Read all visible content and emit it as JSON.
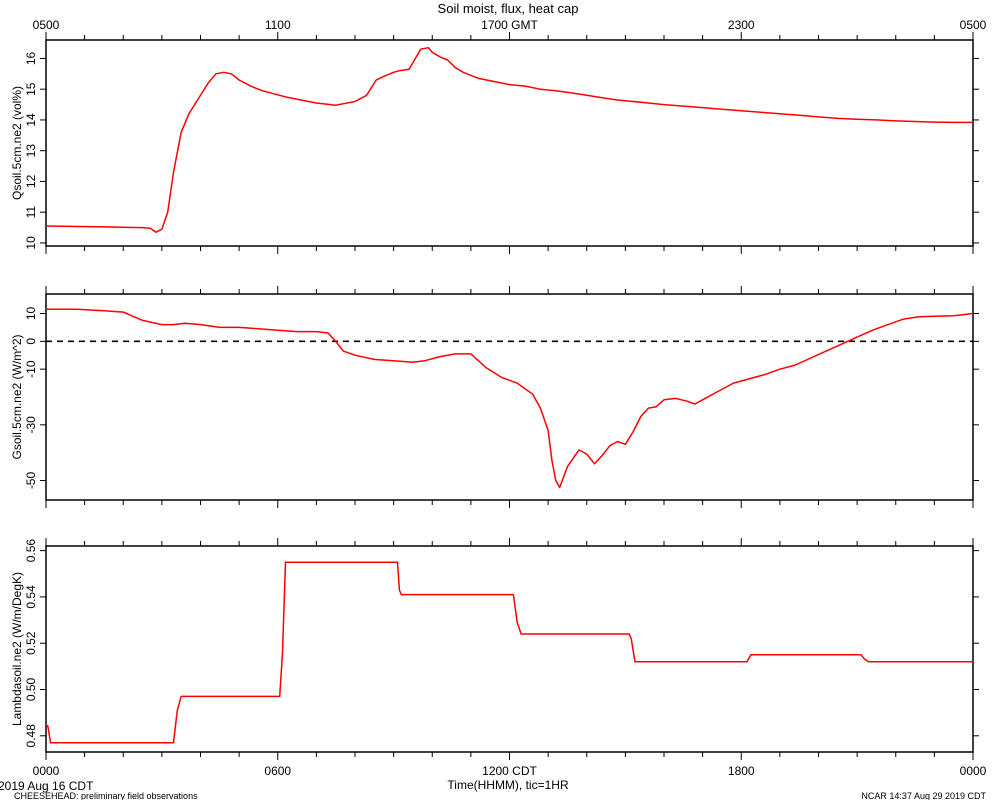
{
  "figure": {
    "title": "Soil moist, flux, heat cap",
    "top_axis_ticks": [
      "0500",
      "1100",
      "1700 GMT",
      "2300",
      "0500"
    ],
    "bottom_axis_ticks": [
      "0000",
      "0600",
      "1200 CDT",
      "1800",
      "0000"
    ],
    "xlabel": "Time(HHMM), tic=1HR",
    "date_label": "2019 Aug 16 CDT",
    "footer_left": "CHEESEHEAD: preliminary field observations",
    "footer_right": "NCAR 14:37 Aug 29 2019 CDT",
    "line_color": "#ff0000",
    "zero_line_color": "#000000"
  },
  "chart_data": [
    {
      "type": "line",
      "ylabel": "Qsoil.5cm.ne2 (vol%)",
      "x_unit": "hours since 0000 CDT",
      "xlim": [
        0,
        24
      ],
      "ylim": [
        9.9,
        16.6
      ],
      "yticks": [
        10,
        11,
        12,
        13,
        14,
        15,
        16
      ],
      "ytick_labels": [
        "10",
        "11",
        "12",
        "13",
        "14",
        "15",
        "16"
      ],
      "series": [
        {
          "x": [
            0,
            1.5,
            2.5,
            2.7,
            2.85,
            3.0,
            3.15,
            3.3,
            3.5,
            3.7,
            3.9,
            4.2,
            4.4,
            4.6,
            4.8,
            5.0,
            5.3,
            5.6,
            5.9,
            6.2,
            6.6,
            7.0,
            7.5,
            8.0,
            8.3,
            8.55,
            8.8,
            9.0,
            9.15,
            9.4,
            9.7,
            9.9,
            10.0,
            10.2,
            10.4,
            10.6,
            10.8,
            11.2,
            11.6,
            12.0,
            12.4,
            12.8,
            13.2,
            13.6,
            14.0,
            14.4,
            14.8,
            15.2,
            15.6,
            16.0,
            16.5,
            17.0,
            17.5,
            18.0,
            18.5,
            19.0,
            19.5,
            20.0,
            20.5,
            21.0,
            21.5,
            22.0,
            22.5,
            23.0,
            23.5,
            24.0
          ],
          "y": [
            10.55,
            10.52,
            10.5,
            10.48,
            10.35,
            10.45,
            11.0,
            12.3,
            13.6,
            14.2,
            14.6,
            15.2,
            15.5,
            15.55,
            15.5,
            15.3,
            15.1,
            14.95,
            14.85,
            14.75,
            14.65,
            14.55,
            14.48,
            14.6,
            14.8,
            15.3,
            15.45,
            15.55,
            15.6,
            15.65,
            16.3,
            16.35,
            16.2,
            16.05,
            15.95,
            15.7,
            15.55,
            15.35,
            15.25,
            15.15,
            15.1,
            15.0,
            14.95,
            14.88,
            14.8,
            14.72,
            14.65,
            14.6,
            14.55,
            14.5,
            14.45,
            14.4,
            14.35,
            14.3,
            14.25,
            14.2,
            14.15,
            14.1,
            14.05,
            14.02,
            14.0,
            13.97,
            13.95,
            13.93,
            13.92,
            13.92
          ]
        }
      ]
    },
    {
      "type": "line",
      "ylabel": "Gsoil.5cm.ne2 (W/m^2)",
      "x_unit": "hours since 0000 CDT",
      "xlim": [
        0,
        24
      ],
      "ylim": [
        -57,
        17
      ],
      "yticks": [
        10,
        0,
        -10,
        -30,
        -50
      ],
      "ytick_labels": [
        "10",
        "0",
        "-10",
        "-30",
        "-50"
      ],
      "zero_line": true,
      "series": [
        {
          "x": [
            0,
            0.8,
            1.5,
            2.0,
            2.5,
            3.0,
            3.3,
            3.6,
            4.0,
            4.5,
            5.0,
            5.5,
            6.0,
            6.5,
            7.0,
            7.3,
            7.5,
            7.7,
            8.0,
            8.5,
            9.0,
            9.5,
            9.8,
            10.2,
            10.6,
            11.0,
            11.4,
            11.8,
            12.2,
            12.6,
            12.8,
            13.0,
            13.1,
            13.2,
            13.3,
            13.5,
            13.8,
            14.0,
            14.2,
            14.4,
            14.6,
            14.8,
            15.0,
            15.2,
            15.4,
            15.6,
            15.8,
            16.0,
            16.3,
            16.6,
            16.8,
            17.0,
            17.4,
            17.8,
            18.2,
            18.6,
            19.0,
            19.4,
            19.8,
            20.2,
            20.6,
            21.0,
            21.4,
            21.8,
            22.2,
            22.6,
            23.0,
            23.5,
            24.0
          ],
          "y": [
            11.5,
            11.5,
            11.0,
            10.5,
            7.5,
            6.0,
            6.0,
            6.5,
            6.0,
            5.0,
            5.0,
            4.5,
            4.0,
            3.5,
            3.5,
            3.0,
            0,
            -3.5,
            -5.0,
            -6.5,
            -7.0,
            -7.5,
            -7.0,
            -5.5,
            -4.5,
            -4.5,
            -9.5,
            -13.0,
            -15.0,
            -19.0,
            -24.0,
            -32.0,
            -43.0,
            -50.0,
            -52.5,
            -45.0,
            -39.0,
            -40.5,
            -44.0,
            -41.0,
            -37.5,
            -36.0,
            -37.0,
            -32.5,
            -27.0,
            -24.0,
            -23.5,
            -21.0,
            -20.5,
            -21.5,
            -22.5,
            -21.0,
            -18.0,
            -15.0,
            -13.5,
            -12.0,
            -10.0,
            -8.5,
            -6.0,
            -3.5,
            -1.0,
            1.5,
            4.0,
            6.0,
            8.0,
            8.8,
            9.0,
            9.2,
            10.0
          ]
        }
      ]
    },
    {
      "type": "line",
      "ylabel": "Lambdasoil.ne2 (W/m/DegK)",
      "x_unit": "hours since 0000 CDT",
      "xlim": [
        0,
        24
      ],
      "ylim": [
        0.473,
        0.562
      ],
      "yticks": [
        0.48,
        0.5,
        0.52,
        0.54,
        0.56
      ],
      "ytick_labels": [
        "0.48",
        "0.50",
        "0.52",
        "0.54",
        "0.56"
      ],
      "series": [
        {
          "x": [
            0,
            0.05,
            0.12,
            3.3,
            3.4,
            3.5,
            6.05,
            6.12,
            6.2,
            9.1,
            9.15,
            9.2,
            12.1,
            12.2,
            12.3,
            15.1,
            15.15,
            15.25,
            18.15,
            18.25,
            21.1,
            21.2,
            21.3,
            24.0
          ],
          "y": [
            0.485,
            0.484,
            0.477,
            0.477,
            0.491,
            0.497,
            0.497,
            0.515,
            0.555,
            0.555,
            0.543,
            0.541,
            0.541,
            0.529,
            0.524,
            0.524,
            0.522,
            0.512,
            0.512,
            0.515,
            0.515,
            0.513,
            0.512,
            0.512
          ]
        }
      ]
    }
  ]
}
